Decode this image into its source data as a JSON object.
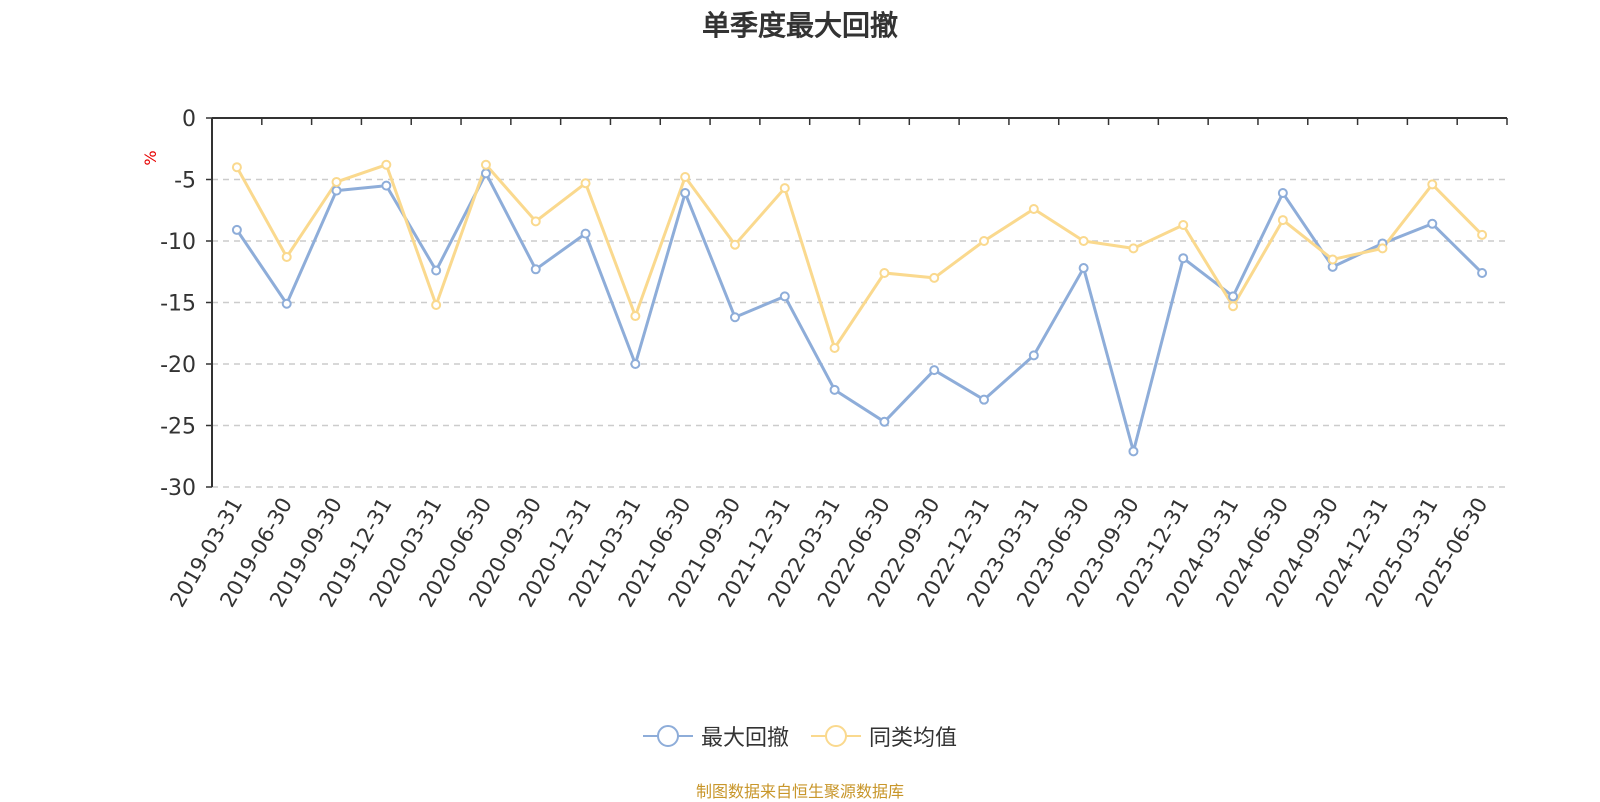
{
  "chart_data": {
    "type": "line",
    "title": "单季度最大回撤",
    "ylabel": "%",
    "xlabel": "",
    "ylim": [
      -30,
      0
    ],
    "yticks": [
      0,
      -5,
      -10,
      -15,
      -20,
      -25,
      -30
    ],
    "grid": true,
    "legend_position": "bottom-center",
    "x": [
      "2019-03-31",
      "2019-06-30",
      "2019-09-30",
      "2019-12-31",
      "2020-03-31",
      "2020-06-30",
      "2020-09-30",
      "2020-12-31",
      "2021-03-31",
      "2021-06-30",
      "2021-09-30",
      "2021-12-31",
      "2022-03-31",
      "2022-06-30",
      "2022-09-30",
      "2022-12-31",
      "2023-03-31",
      "2023-06-30",
      "2023-09-30",
      "2023-12-31",
      "2024-03-31",
      "2024-06-30",
      "2024-09-30",
      "2024-12-31",
      "2025-03-31",
      "2025-06-30"
    ],
    "series": [
      {
        "name": "最大回撤",
        "color": "#8eadd9",
        "values": [
          -9.1,
          -15.1,
          -5.9,
          -5.5,
          -12.4,
          -4.5,
          -12.3,
          -9.4,
          -20.0,
          -6.1,
          -16.2,
          -14.5,
          -22.1,
          -24.7,
          -20.5,
          -22.9,
          -19.3,
          -12.2,
          -27.1,
          -11.4,
          -14.5,
          -6.1,
          -12.1,
          -10.2,
          -8.6,
          -12.6
        ]
      },
      {
        "name": "同类均值",
        "color": "#fad98e",
        "values": [
          -4.0,
          -11.3,
          -5.2,
          -3.8,
          -15.2,
          -3.8,
          -8.4,
          -5.3,
          -16.1,
          -4.8,
          -10.3,
          -5.7,
          -18.7,
          -12.6,
          -13.0,
          -10.0,
          -7.4,
          -10.0,
          -10.6,
          -8.7,
          -15.3,
          -8.3,
          -11.5,
          -10.6,
          -5.4,
          -9.5
        ]
      }
    ]
  },
  "footer": {
    "source": "制图数据来自恒生聚源数据库"
  }
}
